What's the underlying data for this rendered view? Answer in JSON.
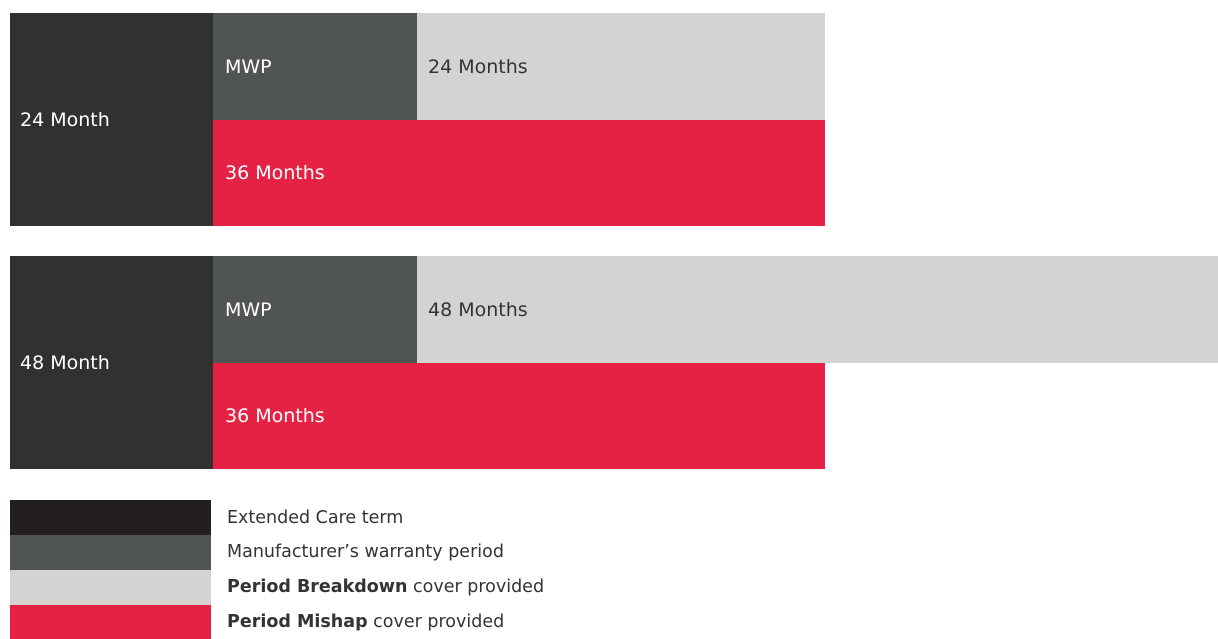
{
  "plans": [
    {
      "term": "24 Month",
      "mwp": "MWP",
      "breakdown": "24 Months",
      "mishap": "36 Months"
    },
    {
      "term": "48 Month",
      "mwp": "MWP",
      "breakdown": "48 Months",
      "mishap": "36 Months"
    }
  ],
  "legend": {
    "items": [
      {
        "text": "Extended Care term"
      },
      {
        "text": "Manufacturer’s warranty period"
      },
      {
        "strong": "Period Breakdown",
        "text": "cover provided"
      },
      {
        "strong": "Period Mishap",
        "text": "cover provided"
      }
    ]
  }
}
